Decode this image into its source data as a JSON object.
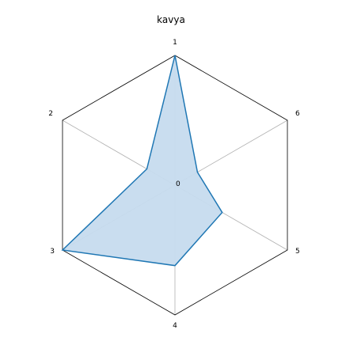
{
  "chart_data": {
    "type": "radar",
    "title": "kavya",
    "axes": [
      "1",
      "2",
      "3",
      "4",
      "5",
      "6"
    ],
    "center_label": "0",
    "rmax": 1,
    "series": [
      {
        "values": [
          1.0,
          0.25,
          1.0,
          0.62,
          0.42,
          0.2
        ],
        "color": "#1f77b4",
        "fill": "#c6dbee"
      }
    ],
    "grid": true,
    "grid_color": "#b0b0b0",
    "frame_color": "#000000"
  }
}
